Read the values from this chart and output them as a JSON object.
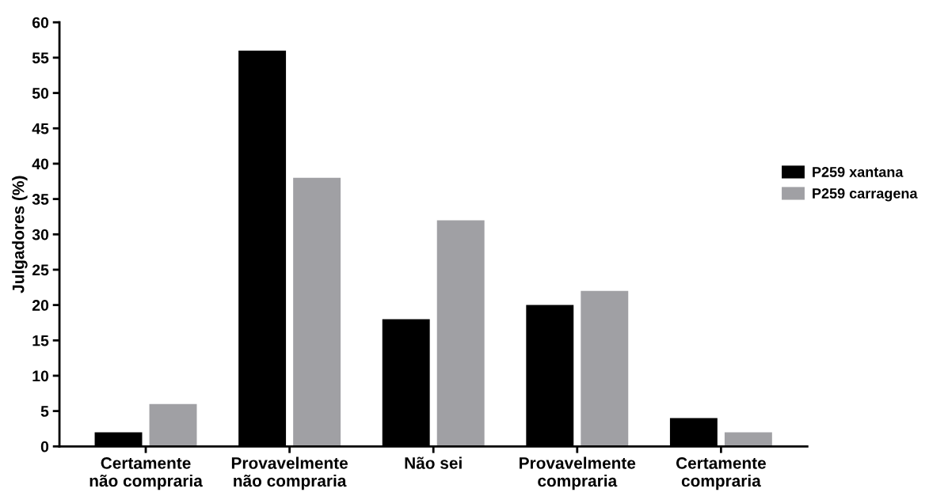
{
  "chart_data": {
    "type": "bar",
    "ylabel": "Julgadores (%)",
    "categories": [
      "Certamente\nnão compraria",
      "Provavelmente\nnão compraria",
      "Não sei",
      "Provavelmente\ncompraria",
      "Certamente\ncompraria"
    ],
    "series": [
      {
        "name": "P259 xantana",
        "color": "#000000",
        "values": [
          2,
          56,
          18,
          20,
          4
        ]
      },
      {
        "name": "P259 carragena",
        "color": "#a0a0a4",
        "values": [
          6,
          38,
          32,
          22,
          2
        ]
      }
    ],
    "ylim": [
      0,
      60
    ],
    "yticks": [
      0,
      5,
      10,
      15,
      20,
      25,
      30,
      35,
      40,
      45,
      50,
      55,
      60
    ],
    "grid": false,
    "legend": "right"
  }
}
